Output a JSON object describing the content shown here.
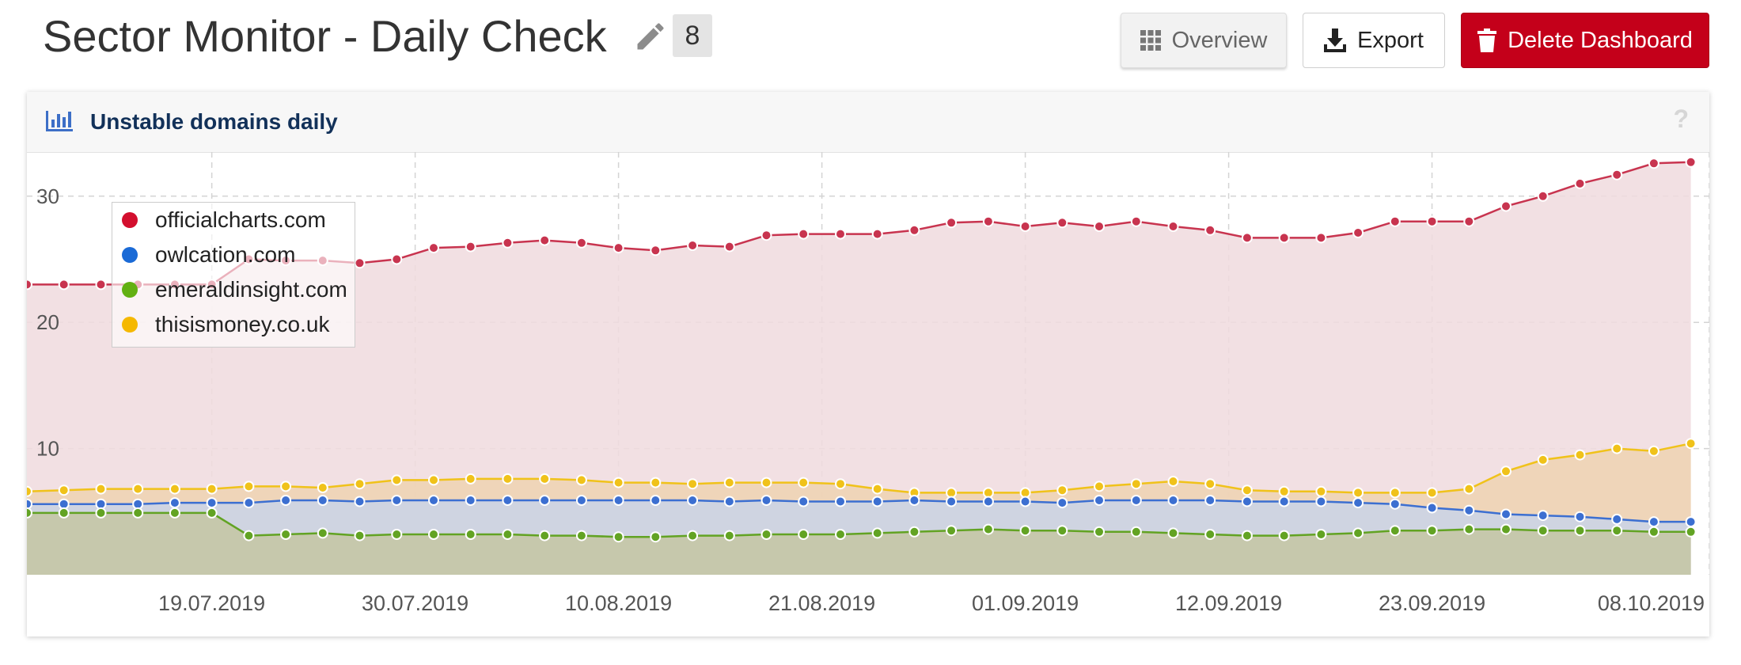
{
  "header": {
    "title": "Sector Monitor - Daily Check",
    "count": "8",
    "buttons": {
      "overview": "Overview",
      "export": "Export",
      "delete": "Delete Dashboard"
    }
  },
  "colors": {
    "delete_button": "#c4001a",
    "card_title": "#123159"
  },
  "icons": {
    "edit": "pencil-icon",
    "overview": "grid-icon",
    "export": "download-icon",
    "delete": "trash-icon",
    "card": "bar-chart-icon",
    "help": "question-icon"
  },
  "card": {
    "title": "Unstable domains daily",
    "help": "?"
  },
  "chart_data": {
    "type": "area",
    "xlim": [
      "2019-07-09",
      "2019-10-08"
    ],
    "ylim": [
      0,
      33.5
    ],
    "grid": true,
    "legend_position": "top-left",
    "y_ticks": [
      10,
      20,
      30
    ],
    "x_ticks": [
      "19.07.2019",
      "30.07.2019",
      "10.08.2019",
      "21.08.2019",
      "01.09.2019",
      "12.09.2019",
      "23.09.2019",
      "08.10.2019"
    ],
    "x": [
      "2019-07-09",
      "2019-07-11",
      "2019-07-13",
      "2019-07-15",
      "2019-07-17",
      "2019-07-19",
      "2019-07-21",
      "2019-07-23",
      "2019-07-25",
      "2019-07-27",
      "2019-07-29",
      "2019-07-31",
      "2019-08-02",
      "2019-08-04",
      "2019-08-06",
      "2019-08-08",
      "2019-08-10",
      "2019-08-12",
      "2019-08-14",
      "2019-08-16",
      "2019-08-18",
      "2019-08-20",
      "2019-08-22",
      "2019-08-24",
      "2019-08-26",
      "2019-08-28",
      "2019-08-30",
      "2019-09-01",
      "2019-09-03",
      "2019-09-05",
      "2019-09-07",
      "2019-09-09",
      "2019-09-11",
      "2019-09-13",
      "2019-09-15",
      "2019-09-17",
      "2019-09-19",
      "2019-09-21",
      "2019-09-23",
      "2019-09-25",
      "2019-09-27",
      "2019-09-29",
      "2019-10-01",
      "2019-10-03",
      "2019-10-05",
      "2019-10-07"
    ],
    "series": [
      {
        "name": "officialcharts.com",
        "color": "#c8344f",
        "fill": "#f0dade",
        "values": [
          23.0,
          23.0,
          23.0,
          23.0,
          23.0,
          23.0,
          25.0,
          24.9,
          24.9,
          24.7,
          25.0,
          25.9,
          26.0,
          26.3,
          26.5,
          26.3,
          25.9,
          25.7,
          26.1,
          26.0,
          26.9,
          27.0,
          27.0,
          27.0,
          27.3,
          27.9,
          28.0,
          27.6,
          27.9,
          27.6,
          28.0,
          27.6,
          27.3,
          26.7,
          26.7,
          26.7,
          27.1,
          28.0,
          28.0,
          28.0,
          29.2,
          30.0,
          31.0,
          31.7,
          32.6,
          32.7
        ]
      },
      {
        "name": "owlcation.com",
        "color": "#3c6fd1",
        "fill": "#c9d4e8",
        "values": [
          5.6,
          5.6,
          5.6,
          5.6,
          5.7,
          5.7,
          5.7,
          5.9,
          5.9,
          5.8,
          5.9,
          5.9,
          5.9,
          5.9,
          5.9,
          5.9,
          5.9,
          5.9,
          5.9,
          5.8,
          5.9,
          5.8,
          5.8,
          5.8,
          5.9,
          5.8,
          5.8,
          5.8,
          5.7,
          5.9,
          5.9,
          5.9,
          5.9,
          5.8,
          5.8,
          5.8,
          5.7,
          5.6,
          5.3,
          5.1,
          4.8,
          4.7,
          4.6,
          4.4,
          4.2,
          4.2
        ]
      },
      {
        "name": "emeraldinsight.com",
        "color": "#62a323",
        "fill": "#c4c6a2",
        "values": [
          4.9,
          4.9,
          4.9,
          4.9,
          4.9,
          4.9,
          3.1,
          3.2,
          3.3,
          3.1,
          3.2,
          3.2,
          3.2,
          3.2,
          3.1,
          3.1,
          3.0,
          3.0,
          3.1,
          3.1,
          3.2,
          3.2,
          3.2,
          3.3,
          3.4,
          3.5,
          3.6,
          3.5,
          3.5,
          3.4,
          3.4,
          3.3,
          3.2,
          3.1,
          3.1,
          3.2,
          3.3,
          3.5,
          3.5,
          3.6,
          3.6,
          3.5,
          3.5,
          3.5,
          3.4,
          3.4
        ]
      },
      {
        "name": "thisismoney.co.uk",
        "color": "#f0c21a",
        "fill": "#efd2b2",
        "values": [
          6.6,
          6.7,
          6.8,
          6.8,
          6.8,
          6.8,
          7.0,
          7.0,
          6.9,
          7.2,
          7.5,
          7.5,
          7.6,
          7.6,
          7.6,
          7.5,
          7.3,
          7.3,
          7.2,
          7.3,
          7.3,
          7.3,
          7.2,
          6.8,
          6.5,
          6.5,
          6.5,
          6.5,
          6.7,
          7.0,
          7.2,
          7.4,
          7.2,
          6.7,
          6.6,
          6.6,
          6.5,
          6.5,
          6.5,
          6.8,
          8.2,
          9.1,
          9.5,
          10.0,
          9.8,
          10.4
        ]
      }
    ]
  }
}
